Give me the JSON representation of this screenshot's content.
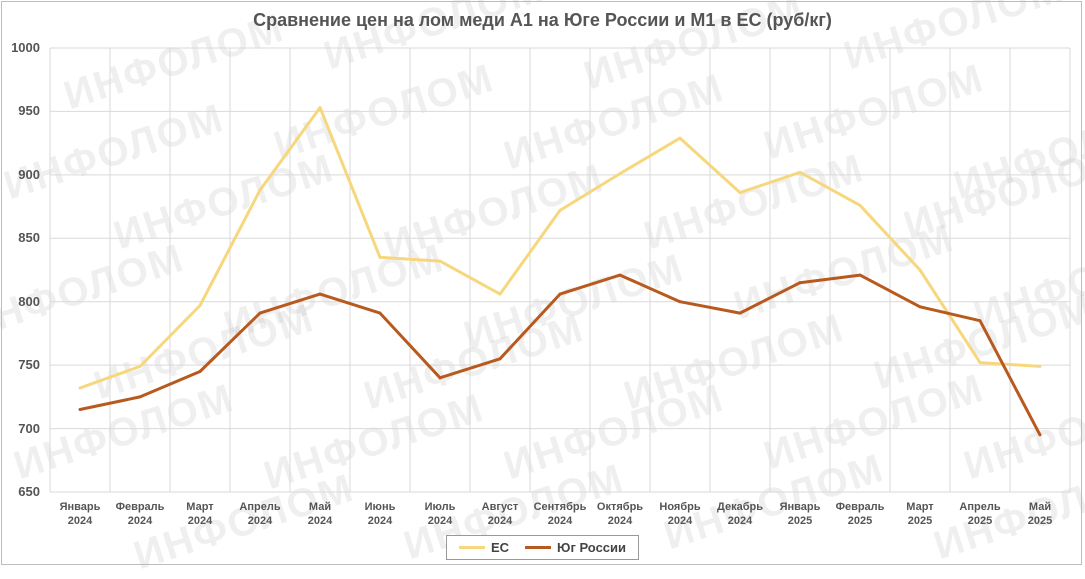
{
  "watermark_text": "ИНФОЛОМ",
  "chart_data": {
    "type": "line",
    "title": "Сравнение цен на лом меди А1 на Юге России и М1 в ЕС (руб/кг)",
    "xlabel": "",
    "ylabel": "",
    "ylim": [
      650,
      1000
    ],
    "yticks": [
      650,
      700,
      750,
      800,
      850,
      900,
      950,
      1000
    ],
    "categories": [
      [
        "Январь",
        "2024"
      ],
      [
        "Февраль",
        "2024"
      ],
      [
        "Март",
        "2024"
      ],
      [
        "Апрель",
        "2024"
      ],
      [
        "Май",
        "2024"
      ],
      [
        "Июнь",
        "2024"
      ],
      [
        "Июль",
        "2024"
      ],
      [
        "Август",
        "2024"
      ],
      [
        "Сентябрь",
        "2024"
      ],
      [
        "Октябрь",
        "2024"
      ],
      [
        "Ноябрь",
        "2024"
      ],
      [
        "Декабрь",
        "2024"
      ],
      [
        "Январь",
        "2025"
      ],
      [
        "Февраль",
        "2025"
      ],
      [
        "Март",
        "2025"
      ],
      [
        "Апрель",
        "2025"
      ],
      [
        "Май",
        "2025"
      ]
    ],
    "grid": true,
    "legend_position": "bottom",
    "series": [
      {
        "name": "ЕС",
        "color": "#f7d77e",
        "values": [
          732,
          749,
          797,
          888,
          953,
          835,
          832,
          806,
          872,
          901,
          929,
          886,
          902,
          876,
          825,
          752,
          749
        ]
      },
      {
        "name": "Юг России",
        "color": "#b85a1f",
        "values": [
          715,
          725,
          745,
          791,
          806,
          791,
          740,
          755,
          806,
          821,
          800,
          791,
          815,
          821,
          796,
          785,
          695
        ]
      }
    ]
  }
}
